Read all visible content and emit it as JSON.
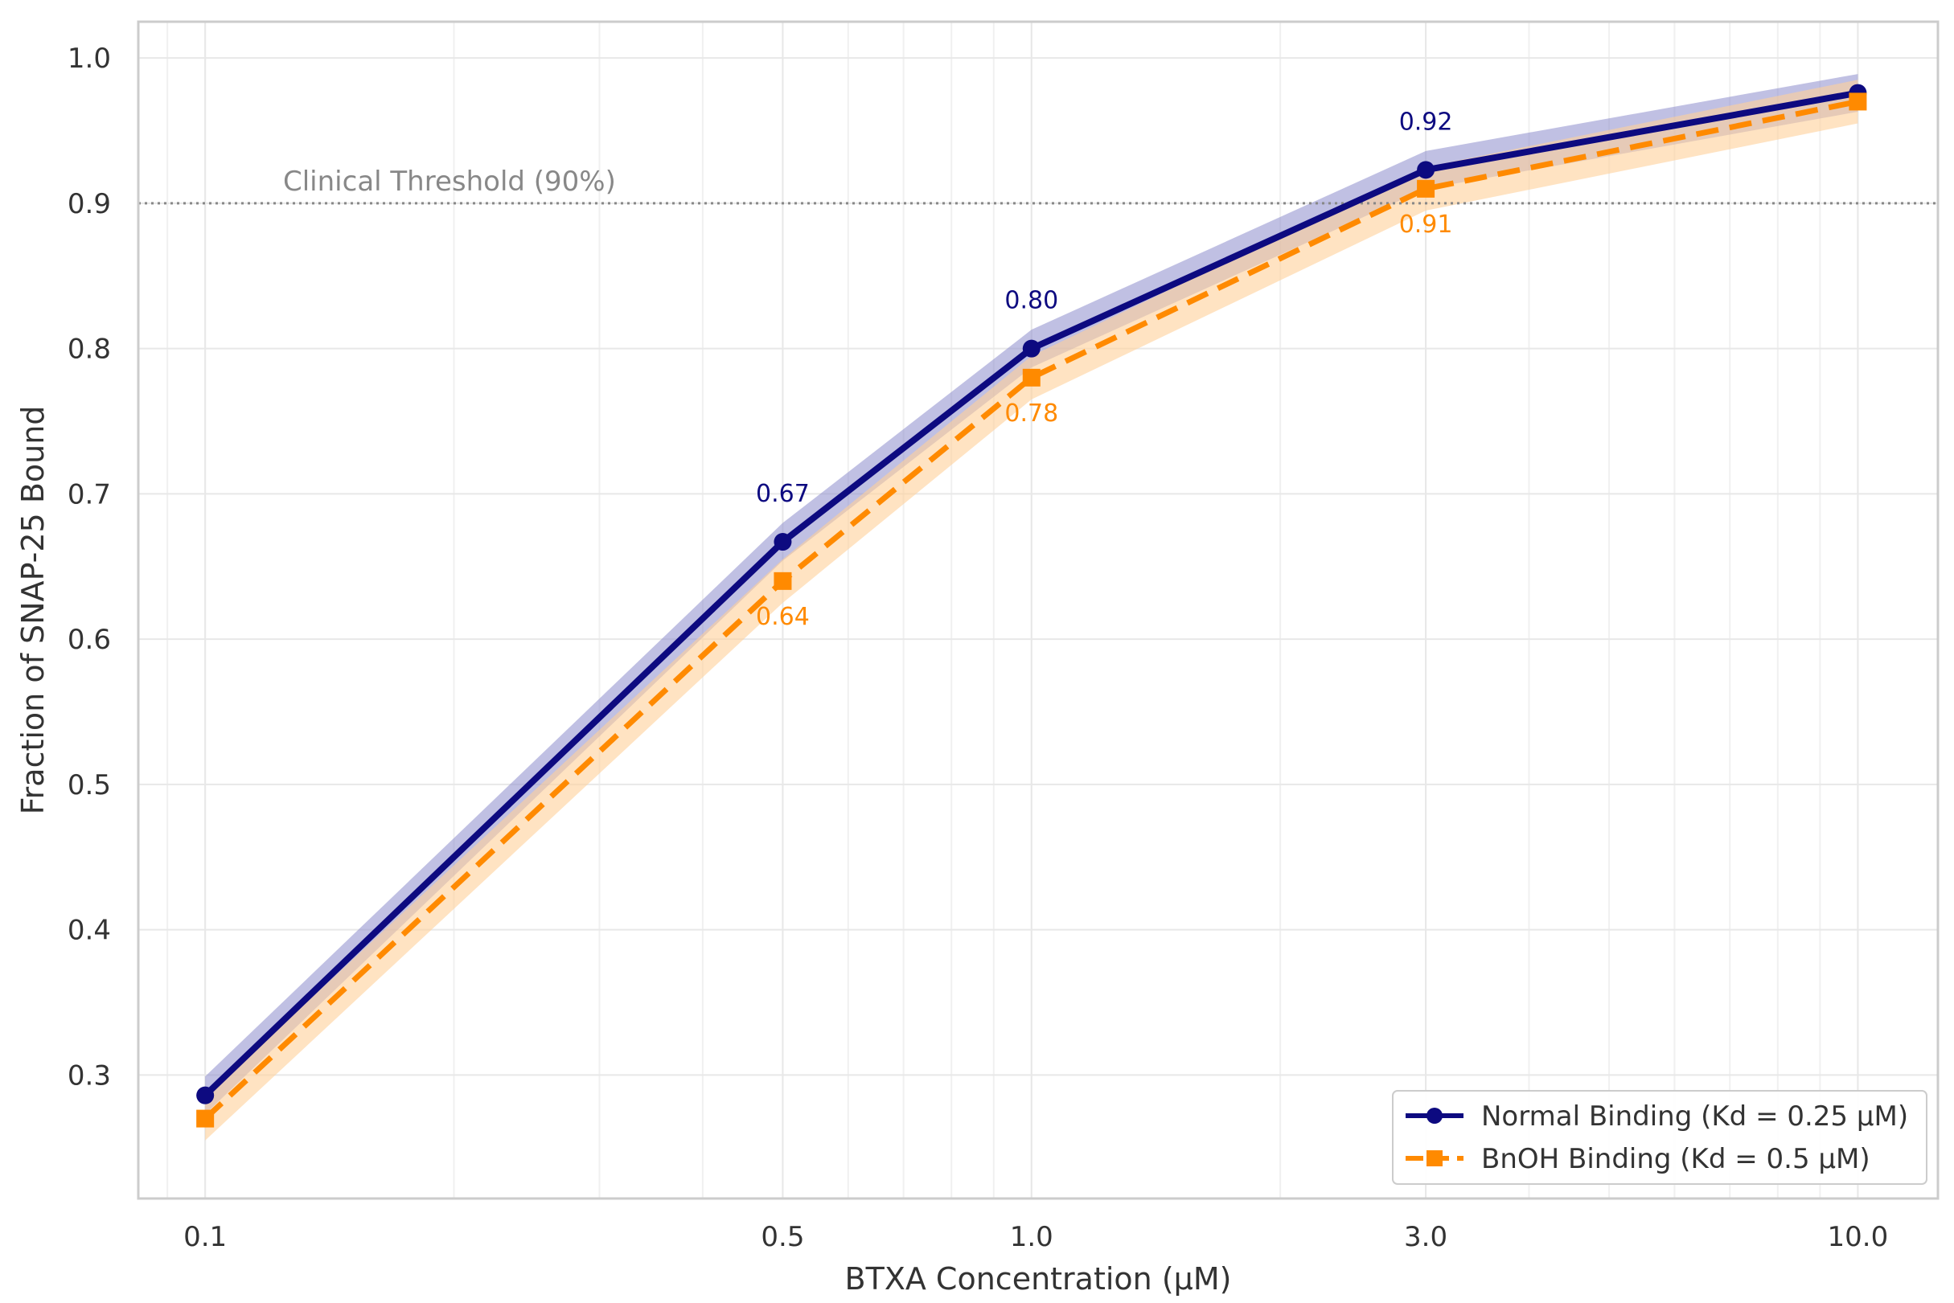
{
  "chart_data": {
    "type": "line",
    "xlabel": "BTXA Concentration (μM)",
    "ylabel": "Fraction of SNAP-25 Bound",
    "xscale": "log",
    "xlim": [
      0.083,
      12.5
    ],
    "ylim": [
      0.215,
      1.025
    ],
    "xticks": [
      0.1,
      0.5,
      1.0,
      3.0,
      10.0
    ],
    "xtick_labels": [
      "0.1",
      "0.5",
      "1.0",
      "3.0",
      "10.0"
    ],
    "yticks": [
      0.3,
      0.4,
      0.5,
      0.6,
      0.7,
      0.8,
      0.9,
      1.0
    ],
    "ytick_labels": [
      "0.3",
      "0.4",
      "0.5",
      "0.6",
      "0.7",
      "0.8",
      "0.9",
      "1.0"
    ],
    "grid": true,
    "legend_position": "bottom-right",
    "x": [
      0.1,
      0.5,
      1.0,
      3.0,
      10.0
    ],
    "series": [
      {
        "name": "Normal Binding (Kd = 0.25 μM)",
        "values": [
          0.286,
          0.667,
          0.8,
          0.923,
          0.976
        ],
        "band": [
          0.013,
          0.013,
          0.013,
          0.013,
          0.013
        ],
        "color": "#0d0a80",
        "band_color": "#8c8ccc",
        "linestyle": "solid",
        "marker": "circle",
        "labels": [
          "",
          "0.67",
          "0.80",
          "0.92",
          ""
        ],
        "label_side": "above"
      },
      {
        "name": "BnOH Binding (Kd = 0.5 μM)",
        "values": [
          0.27,
          0.64,
          0.78,
          0.91,
          0.97
        ],
        "band": [
          0.015,
          0.015,
          0.015,
          0.015,
          0.015
        ],
        "color": "#ff8a00",
        "band_color": "#ffd09a",
        "linestyle": "dashed",
        "marker": "square",
        "labels": [
          "",
          "0.64",
          "0.78",
          "0.91",
          ""
        ],
        "label_side": "below"
      }
    ],
    "annotations": [
      {
        "type": "hline",
        "y": 0.9,
        "text": "Clinical Threshold (90%)",
        "color": "#888888",
        "linestyle": "dotted"
      }
    ]
  }
}
